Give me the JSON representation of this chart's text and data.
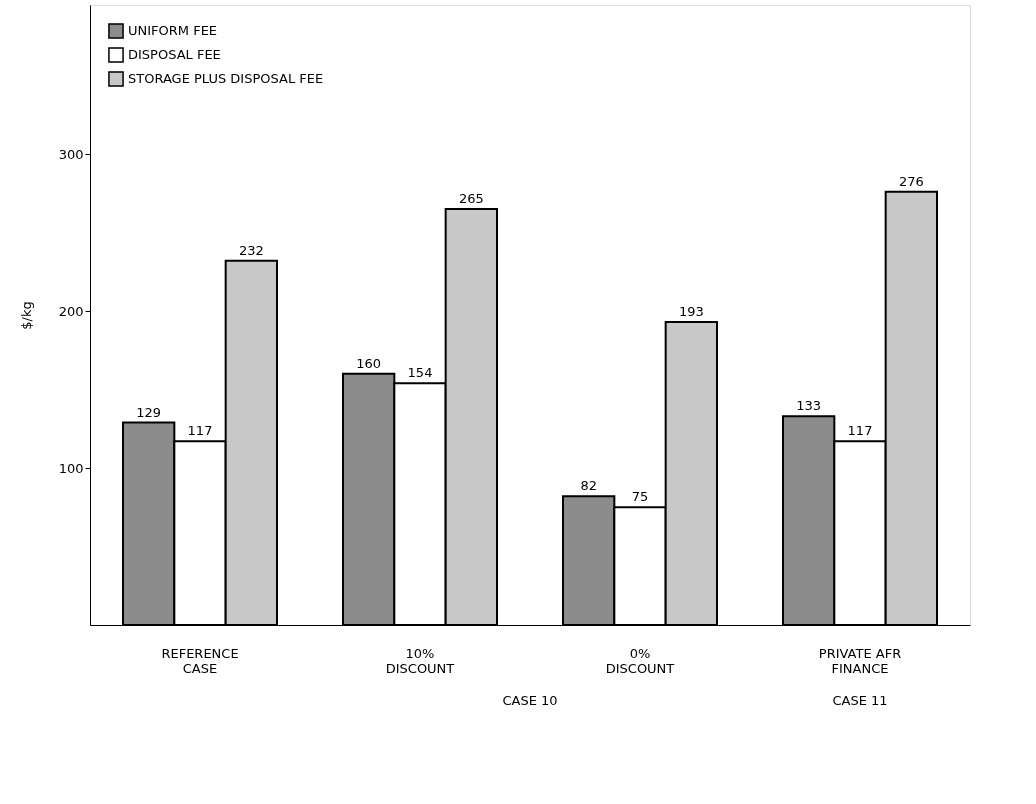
{
  "chart_data": {
    "type": "bar",
    "ylabel": "$/kg",
    "categories": [
      "REFERENCE\nCASE",
      "10%\nDISCOUNT",
      "0%\nDISCOUNT",
      "PRIVATE AFR\nFINANCE"
    ],
    "series": [
      {
        "name": "UNIFORM FEE",
        "color": "#8c8c8c",
        "values": [
          129,
          160,
          82,
          133
        ]
      },
      {
        "name": "DISPOSAL FEE",
        "color": "#ffffff",
        "values": [
          117,
          154,
          75,
          117
        ]
      },
      {
        "name": "STORAGE PLUS DISPOSAL FEE",
        "color": "#c8c8c8",
        "values": [
          232,
          265,
          193,
          276
        ]
      }
    ],
    "ylim": [
      0,
      395
    ],
    "yticks": [
      100,
      200,
      300
    ],
    "grid": false,
    "legend": "top left",
    "data_labels": true,
    "annotations": [
      "CASE 10",
      "CASE 11"
    ]
  }
}
